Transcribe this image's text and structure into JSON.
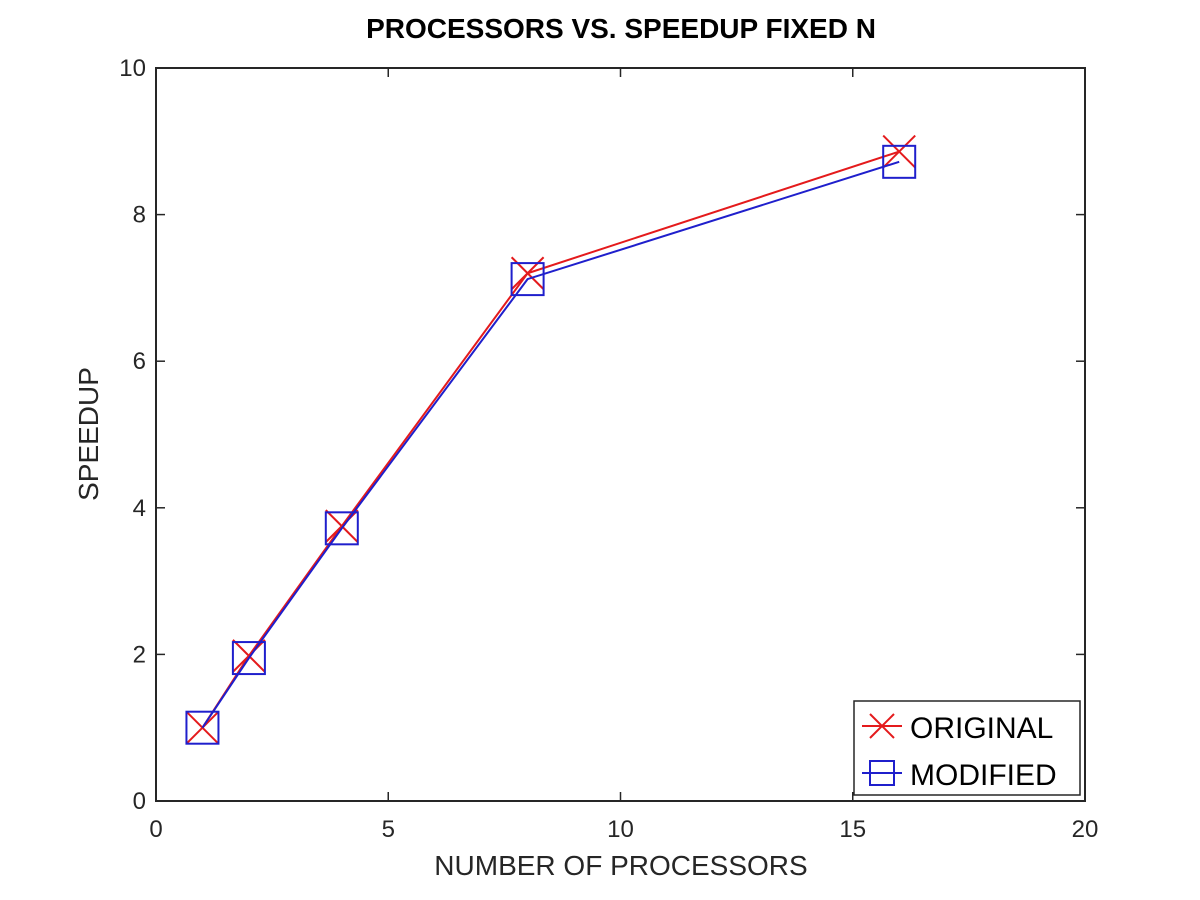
{
  "chart_data": {
    "type": "line",
    "title": "PROCESSORS VS. SPEEDUP FIXED N",
    "xlabel": "NUMBER OF PROCESSORS",
    "ylabel": "SPEEDUP",
    "xlim": [
      0,
      20
    ],
    "ylim": [
      0,
      10
    ],
    "xticks": [
      0,
      5,
      10,
      15,
      20
    ],
    "yticks": [
      0,
      2,
      4,
      6,
      8,
      10
    ],
    "grid": false,
    "legend_position": "bottom-right",
    "series": [
      {
        "name": "ORIGINAL",
        "color": "#e41a1c",
        "marker": "x-mark",
        "x": [
          1,
          2,
          4,
          8,
          16
        ],
        "y": [
          1.0,
          1.98,
          3.75,
          7.2,
          8.86
        ]
      },
      {
        "name": "MODIFIED",
        "color": "#1f1fcc",
        "marker": "square-mark",
        "x": [
          1,
          2,
          4,
          8,
          16
        ],
        "y": [
          1.0,
          1.95,
          3.72,
          7.12,
          8.72
        ]
      }
    ]
  }
}
